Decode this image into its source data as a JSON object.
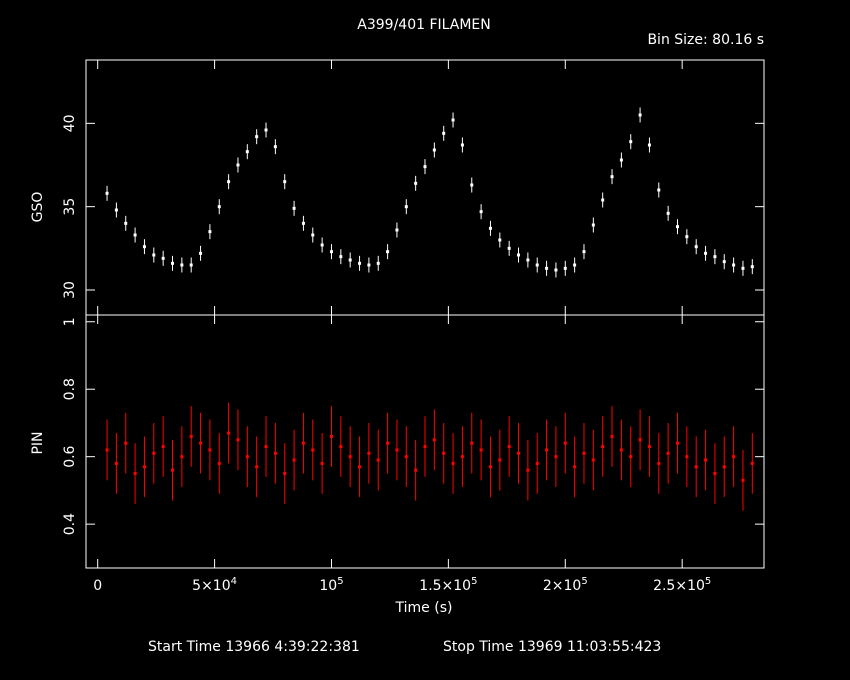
{
  "title": "A399/401 FILAMEN",
  "bin_size_label": "Bin Size: 80.16 s",
  "footer": {
    "start_time": "Start Time 13966  4:39:22:381",
    "stop_time": "Stop Time 13969 11:03:55:423"
  },
  "colors": {
    "background": "#000000",
    "axes": "#ffffff",
    "gso_series": "#ffffff",
    "pin_series": "#ff0000"
  },
  "chart_data": [
    {
      "type": "scatter",
      "xlabel": "",
      "ylabel": "GSO",
      "xlim": [
        -5000,
        285000
      ],
      "ylim": [
        28.5,
        43.8
      ],
      "yticks": [
        30,
        35,
        40
      ],
      "ytick_labels": [
        "30",
        "35",
        "40"
      ],
      "grid": false,
      "series": [
        {
          "error_bars": true,
          "x": [
            4000,
            8000,
            12000,
            16000,
            20000,
            24000,
            28000,
            32000,
            36000,
            40000,
            44000,
            48000,
            52000,
            56000,
            60000,
            64000,
            68000,
            72000,
            76000,
            80000,
            84000,
            88000,
            92000,
            96000,
            100000,
            104000,
            108000,
            112000,
            116000,
            120000,
            124000,
            128000,
            132000,
            136000,
            140000,
            144000,
            148000,
            152000,
            156000,
            160000,
            164000,
            168000,
            172000,
            176000,
            180000,
            184000,
            188000,
            192000,
            196000,
            200000,
            204000,
            208000,
            212000,
            216000,
            220000,
            224000,
            228000,
            232000,
            236000,
            240000,
            244000,
            248000,
            252000,
            256000,
            260000,
            264000,
            268000,
            272000,
            276000,
            280000
          ],
          "y": [
            35.8,
            34.8,
            34.0,
            33.3,
            32.6,
            32.1,
            31.9,
            31.6,
            31.5,
            31.5,
            32.2,
            33.5,
            35.0,
            36.5,
            37.5,
            38.3,
            39.2,
            39.6,
            38.6,
            36.5,
            34.9,
            34.0,
            33.3,
            32.7,
            32.3,
            32.0,
            31.8,
            31.6,
            31.5,
            31.6,
            32.3,
            33.6,
            35.0,
            36.4,
            37.4,
            38.4,
            39.4,
            40.2,
            38.7,
            36.3,
            34.7,
            33.7,
            33.0,
            32.5,
            32.1,
            31.8,
            31.5,
            31.3,
            31.2,
            31.3,
            31.5,
            32.3,
            33.9,
            35.4,
            36.8,
            37.8,
            38.9,
            40.5,
            38.7,
            36.0,
            34.6,
            33.8,
            33.2,
            32.6,
            32.2,
            32.0,
            31.7,
            31.5,
            31.3,
            31.4
          ],
          "yerr": [
            0.45,
            0.45,
            0.45,
            0.45,
            0.45,
            0.45,
            0.45,
            0.45,
            0.45,
            0.45,
            0.45,
            0.45,
            0.45,
            0.45,
            0.45,
            0.45,
            0.45,
            0.45,
            0.45,
            0.45,
            0.45,
            0.45,
            0.45,
            0.45,
            0.45,
            0.45,
            0.45,
            0.45,
            0.45,
            0.45,
            0.45,
            0.45,
            0.45,
            0.45,
            0.45,
            0.45,
            0.45,
            0.45,
            0.45,
            0.45,
            0.45,
            0.45,
            0.45,
            0.45,
            0.45,
            0.45,
            0.45,
            0.45,
            0.45,
            0.45,
            0.45,
            0.45,
            0.45,
            0.45,
            0.45,
            0.45,
            0.45,
            0.45,
            0.45,
            0.45,
            0.45,
            0.45,
            0.45,
            0.45,
            0.45,
            0.45,
            0.45,
            0.45,
            0.45,
            0.45
          ]
        }
      ]
    },
    {
      "type": "scatter",
      "xlabel": "Time (s)",
      "ylabel": "PIN",
      "xlim": [
        -5000,
        285000
      ],
      "ylim": [
        0.27,
        1.02
      ],
      "yticks": [
        0.4,
        0.6,
        0.8,
        1.0
      ],
      "ytick_labels": [
        "0.4",
        "0.6",
        "0.8",
        "1"
      ],
      "xticks": [
        0,
        50000,
        100000,
        150000,
        200000,
        250000
      ],
      "xtick_labels": [
        {
          "base": "0",
          "exp": ""
        },
        {
          "base": "5×10",
          "exp": "4"
        },
        {
          "base": "10",
          "exp": "5"
        },
        {
          "base": "1.5×10",
          "exp": "5"
        },
        {
          "base": "2×10",
          "exp": "5"
        },
        {
          "base": "2.5×10",
          "exp": "5"
        }
      ],
      "grid": false,
      "series": [
        {
          "error_bars": true,
          "x": [
            4000,
            8000,
            12000,
            16000,
            20000,
            24000,
            28000,
            32000,
            36000,
            40000,
            44000,
            48000,
            52000,
            56000,
            60000,
            64000,
            68000,
            72000,
            76000,
            80000,
            84000,
            88000,
            92000,
            96000,
            100000,
            104000,
            108000,
            112000,
            116000,
            120000,
            124000,
            128000,
            132000,
            136000,
            140000,
            144000,
            148000,
            152000,
            156000,
            160000,
            164000,
            168000,
            172000,
            176000,
            180000,
            184000,
            188000,
            192000,
            196000,
            200000,
            204000,
            208000,
            212000,
            216000,
            220000,
            224000,
            228000,
            232000,
            236000,
            240000,
            244000,
            248000,
            252000,
            256000,
            260000,
            264000,
            268000,
            272000,
            276000,
            280000
          ],
          "y": [
            0.62,
            0.58,
            0.64,
            0.55,
            0.57,
            0.61,
            0.63,
            0.56,
            0.6,
            0.66,
            0.64,
            0.62,
            0.58,
            0.67,
            0.65,
            0.6,
            0.57,
            0.63,
            0.61,
            0.55,
            0.59,
            0.64,
            0.62,
            0.58,
            0.66,
            0.63,
            0.6,
            0.57,
            0.61,
            0.59,
            0.64,
            0.62,
            0.6,
            0.56,
            0.63,
            0.65,
            0.61,
            0.58,
            0.6,
            0.64,
            0.62,
            0.57,
            0.59,
            0.63,
            0.61,
            0.56,
            0.58,
            0.62,
            0.6,
            0.64,
            0.57,
            0.61,
            0.59,
            0.63,
            0.66,
            0.62,
            0.6,
            0.65,
            0.63,
            0.58,
            0.61,
            0.64,
            0.6,
            0.57,
            0.59,
            0.55,
            0.57,
            0.6,
            0.53,
            0.58
          ],
          "yerr": [
            0.09,
            0.09,
            0.09,
            0.09,
            0.09,
            0.09,
            0.09,
            0.09,
            0.09,
            0.09,
            0.09,
            0.09,
            0.09,
            0.09,
            0.09,
            0.09,
            0.09,
            0.09,
            0.09,
            0.09,
            0.09,
            0.09,
            0.09,
            0.09,
            0.09,
            0.09,
            0.09,
            0.09,
            0.09,
            0.09,
            0.09,
            0.09,
            0.09,
            0.09,
            0.09,
            0.09,
            0.09,
            0.09,
            0.09,
            0.09,
            0.09,
            0.09,
            0.09,
            0.09,
            0.09,
            0.09,
            0.09,
            0.09,
            0.09,
            0.09,
            0.09,
            0.09,
            0.09,
            0.09,
            0.09,
            0.09,
            0.09,
            0.09,
            0.09,
            0.09,
            0.09,
            0.09,
            0.09,
            0.09,
            0.09,
            0.09,
            0.09,
            0.09,
            0.09,
            0.09
          ]
        }
      ]
    }
  ]
}
